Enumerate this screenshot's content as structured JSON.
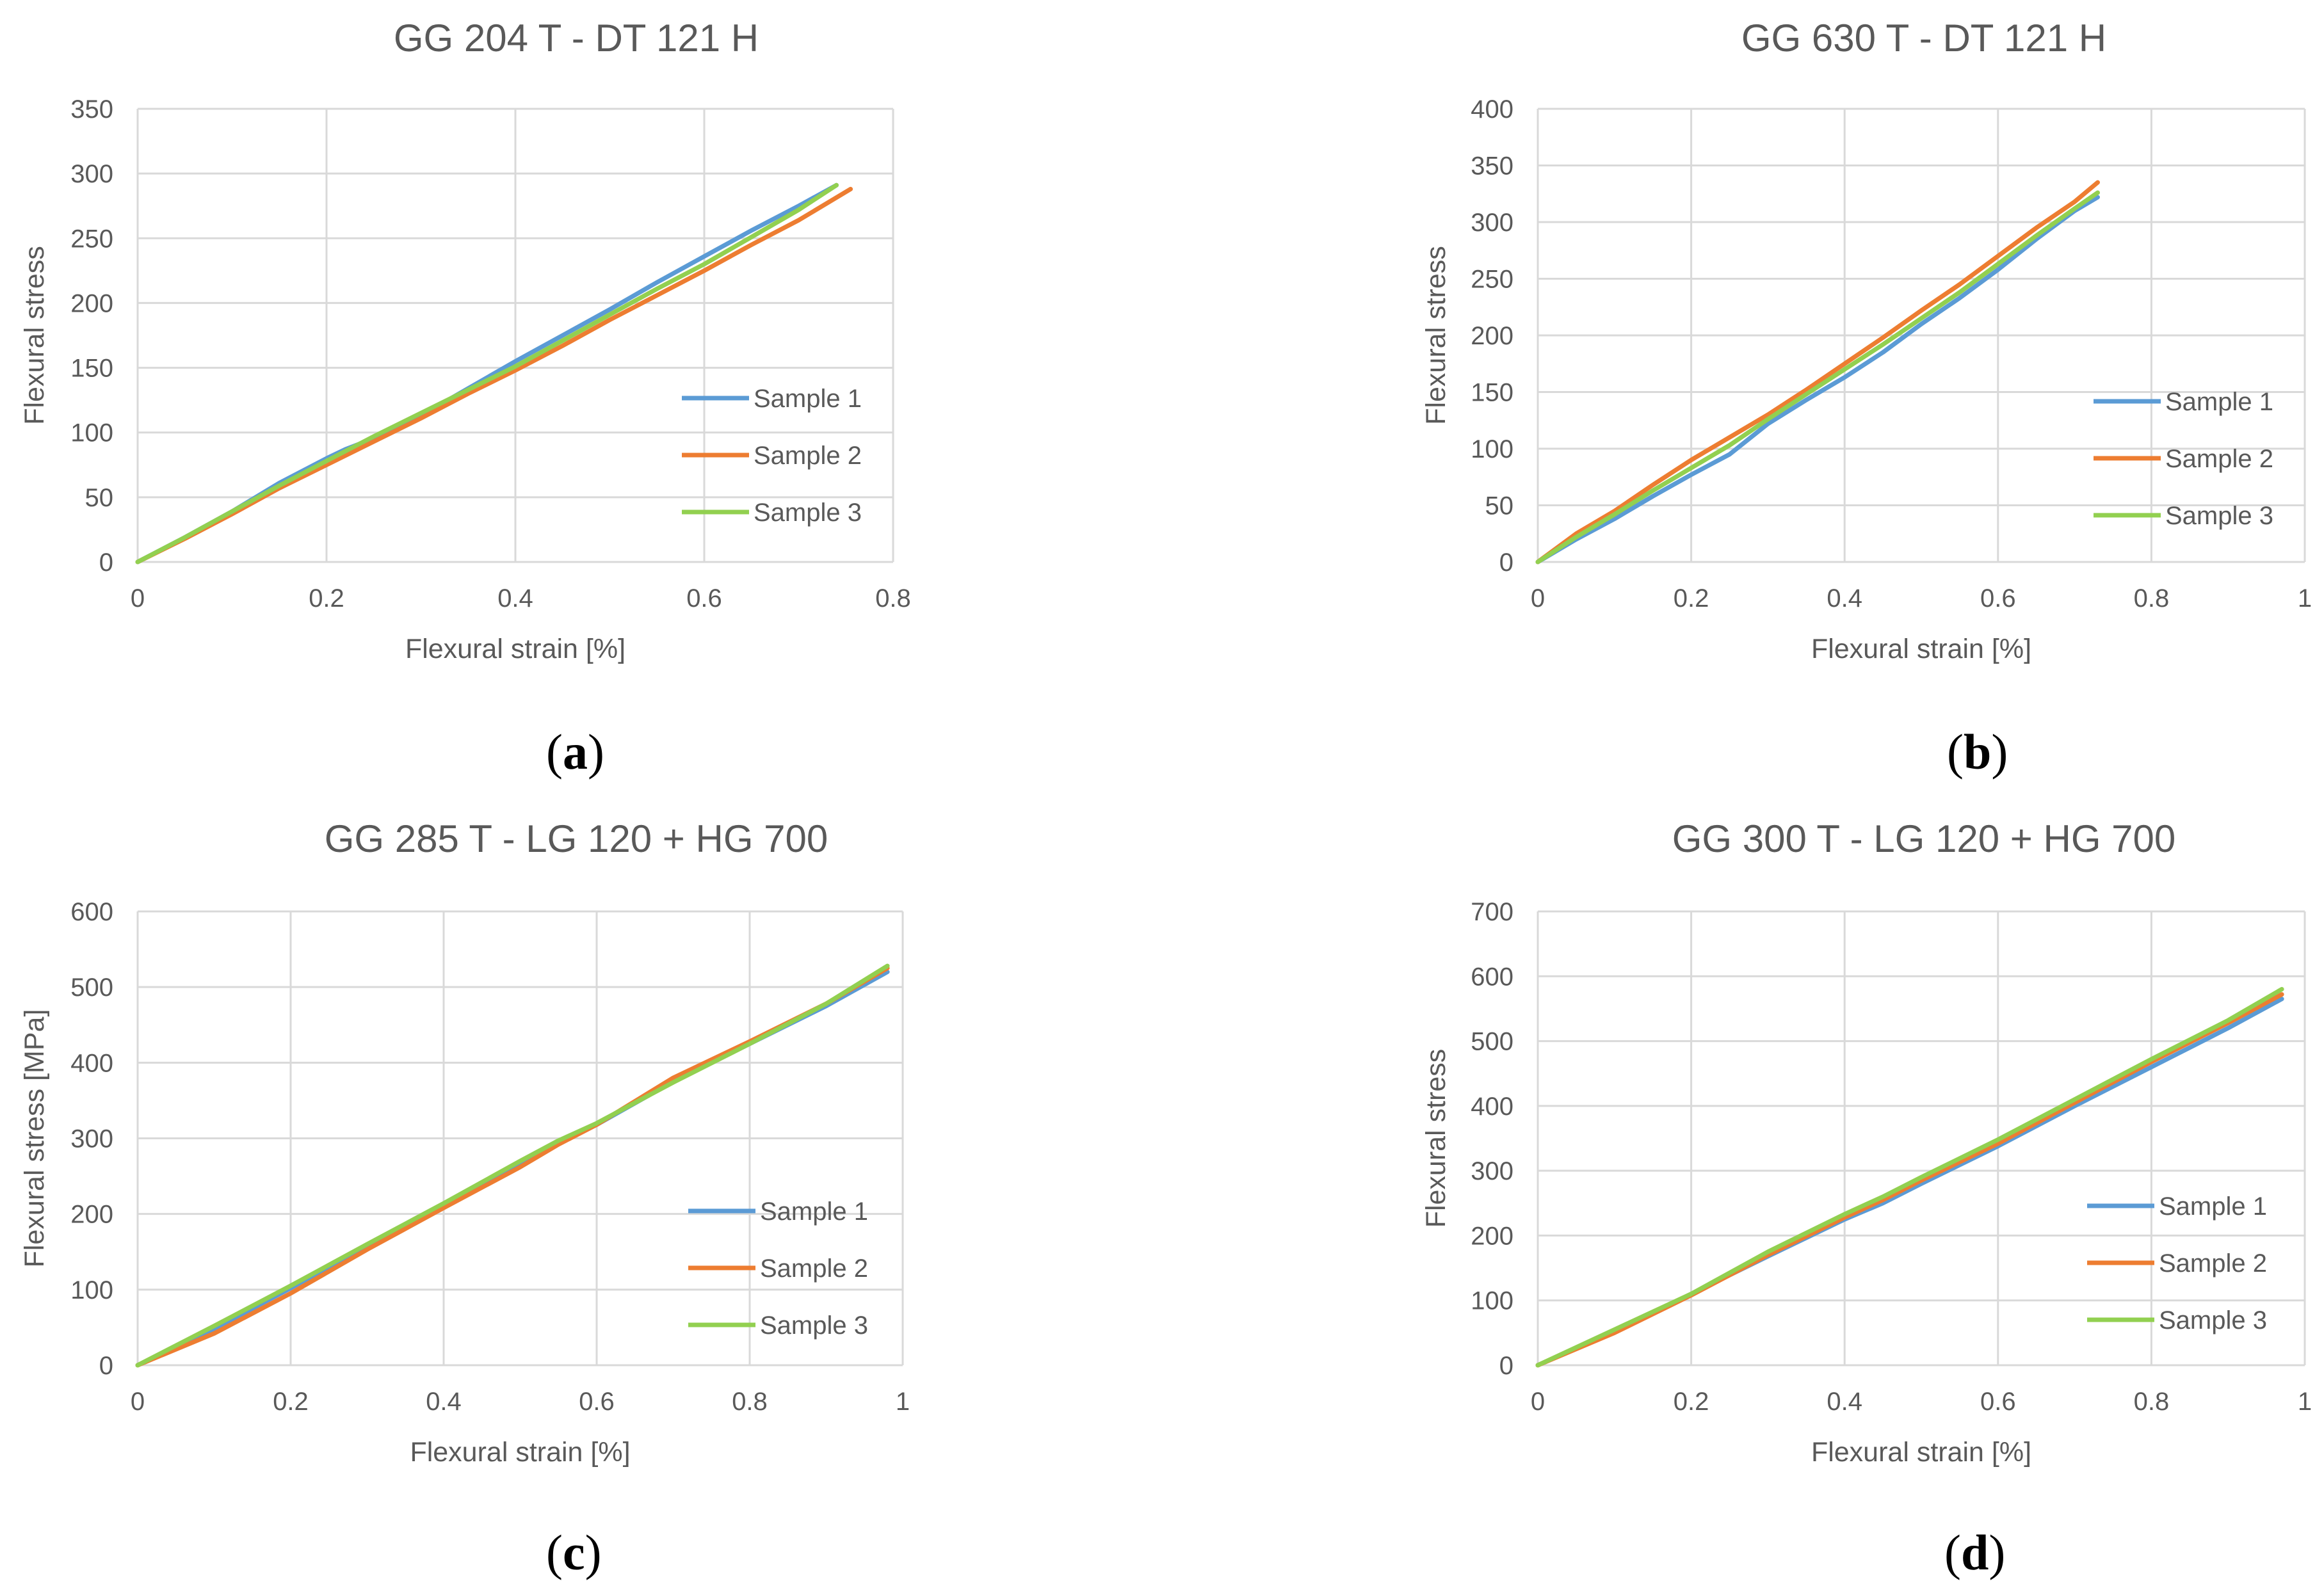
{
  "colors": {
    "sample1": "#5B9BD5",
    "sample2": "#ED7D31",
    "sample3": "#92D050",
    "grid": "#D9D9D9",
    "text": "#595959"
  },
  "chart_data": [
    {
      "type": "line",
      "title": "GG 204 T - DT 121 H",
      "caption": "a",
      "xlabel": "Flexural strain [%]",
      "ylabel": "Flexural stress",
      "xlim": [
        0,
        0.8
      ],
      "ylim": [
        0,
        350
      ],
      "xticks": [
        0,
        0.2,
        0.4,
        0.6,
        0.8
      ],
      "xtick_labels": [
        "0",
        "0.2",
        "0.4",
        "0.6",
        "0.8"
      ],
      "yticks": [
        0,
        50,
        100,
        150,
        200,
        250,
        300,
        350
      ],
      "ytick_labels": [
        "0",
        "50",
        "100",
        "150",
        "200",
        "250",
        "300",
        "350"
      ],
      "legend": "right",
      "series": [
        {
          "name": "Sample 1",
          "x": [
            0,
            0.05,
            0.1,
            0.15,
            0.2,
            0.22,
            0.27,
            0.3,
            0.35,
            0.4,
            0.42,
            0.5,
            0.55,
            0.6,
            0.65,
            0.7,
            0.74
          ],
          "y": [
            0,
            19,
            39,
            61,
            80,
            87,
            101,
            113,
            134,
            155,
            163,
            195,
            216,
            236,
            256,
            275,
            291
          ]
        },
        {
          "name": "Sample 2",
          "x": [
            0,
            0.05,
            0.1,
            0.15,
            0.2,
            0.25,
            0.3,
            0.35,
            0.4,
            0.45,
            0.5,
            0.55,
            0.6,
            0.65,
            0.7,
            0.755
          ],
          "y": [
            0,
            18,
            37,
            57,
            75,
            93,
            111,
            130,
            148,
            167,
            187,
            206,
            225,
            245,
            264,
            288
          ]
        },
        {
          "name": "Sample 3",
          "x": [
            0,
            0.05,
            0.1,
            0.15,
            0.2,
            0.25,
            0.3,
            0.35,
            0.4,
            0.45,
            0.5,
            0.55,
            0.6,
            0.65,
            0.7,
            0.74
          ],
          "y": [
            0,
            19,
            39,
            59,
            78,
            97,
            115,
            133,
            151,
            171,
            191,
            211,
            230,
            251,
            272,
            291
          ]
        }
      ]
    },
    {
      "type": "line",
      "title": "GG 630 T - DT 121 H",
      "caption": "b",
      "xlabel": "Flexural strain [%]",
      "ylabel": "Flexural stress",
      "xlim": [
        0,
        1
      ],
      "ylim": [
        0,
        400
      ],
      "xticks": [
        0,
        0.2,
        0.4,
        0.6,
        0.8,
        1
      ],
      "xtick_labels": [
        "0",
        "0.2",
        "0.4",
        "0.6",
        "0.8",
        "1"
      ],
      "yticks": [
        0,
        50,
        100,
        150,
        200,
        250,
        300,
        350,
        400
      ],
      "ytick_labels": [
        "0",
        "50",
        "100",
        "150",
        "200",
        "250",
        "300",
        "350",
        "400"
      ],
      "legend": "right",
      "series": [
        {
          "name": "Sample 1",
          "x": [
            0,
            0.05,
            0.1,
            0.15,
            0.2,
            0.25,
            0.3,
            0.35,
            0.4,
            0.45,
            0.5,
            0.55,
            0.6,
            0.65,
            0.7,
            0.73
          ],
          "y": [
            0,
            20,
            38,
            58,
            77,
            95,
            122,
            143,
            163,
            185,
            210,
            233,
            258,
            285,
            310,
            322
          ]
        },
        {
          "name": "Sample 2",
          "x": [
            0,
            0.05,
            0.1,
            0.15,
            0.2,
            0.25,
            0.3,
            0.35,
            0.4,
            0.45,
            0.5,
            0.55,
            0.6,
            0.65,
            0.7,
            0.73
          ],
          "y": [
            0,
            25,
            45,
            68,
            90,
            110,
            130,
            152,
            175,
            198,
            222,
            245,
            270,
            295,
            318,
            335
          ]
        },
        {
          "name": "Sample 3",
          "x": [
            0,
            0.05,
            0.1,
            0.15,
            0.2,
            0.25,
            0.3,
            0.35,
            0.4,
            0.45,
            0.5,
            0.55,
            0.6,
            0.65,
            0.7,
            0.73
          ],
          "y": [
            0,
            22,
            42,
            63,
            83,
            103,
            126,
            148,
            170,
            192,
            215,
            238,
            263,
            288,
            312,
            326
          ]
        }
      ]
    },
    {
      "type": "line",
      "title": "GG 285 T - LG 120 + HG 700",
      "caption": "c",
      "xlabel": "Flexural strain [%]",
      "ylabel": "Flexural stress [MPa]",
      "xlim": [
        0,
        1
      ],
      "ylim": [
        0,
        600
      ],
      "xticks": [
        0,
        0.2,
        0.4,
        0.6,
        0.8,
        1
      ],
      "xtick_labels": [
        "0",
        "0.2",
        "0.4",
        "0.6",
        "0.8",
        "1"
      ],
      "yticks": [
        0,
        100,
        200,
        300,
        400,
        500,
        600
      ],
      "ytick_labels": [
        "0",
        "100",
        "200",
        "300",
        "400",
        "500",
        "600"
      ],
      "legend": "right",
      "series": [
        {
          "name": "Sample 1",
          "x": [
            0,
            0.1,
            0.2,
            0.3,
            0.4,
            0.5,
            0.55,
            0.6,
            0.7,
            0.8,
            0.9,
            0.98
          ],
          "y": [
            0,
            48,
            102,
            158,
            212,
            268,
            295,
            318,
            375,
            425,
            475,
            520
          ]
        },
        {
          "name": "Sample 2",
          "x": [
            0,
            0.1,
            0.2,
            0.3,
            0.4,
            0.5,
            0.55,
            0.6,
            0.7,
            0.8,
            0.9,
            0.98
          ],
          "y": [
            0,
            42,
            95,
            153,
            208,
            262,
            292,
            318,
            380,
            428,
            478,
            525
          ]
        },
        {
          "name": "Sample 3",
          "x": [
            0,
            0.1,
            0.2,
            0.3,
            0.4,
            0.5,
            0.55,
            0.6,
            0.7,
            0.8,
            0.9,
            0.98
          ],
          "y": [
            0,
            52,
            105,
            160,
            214,
            270,
            297,
            320,
            374,
            425,
            478,
            528
          ]
        }
      ]
    },
    {
      "type": "line",
      "title": "GG 300 T - LG 120 + HG 700",
      "caption": "d",
      "xlabel": "Flexural strain [%]",
      "ylabel": "Flexural stress",
      "xlim": [
        0,
        1
      ],
      "ylim": [
        0,
        700
      ],
      "xticks": [
        0,
        0.2,
        0.4,
        0.6,
        0.8,
        1
      ],
      "xtick_labels": [
        "0",
        "0.2",
        "0.4",
        "0.6",
        "0.8",
        "1"
      ],
      "yticks": [
        0,
        100,
        200,
        300,
        400,
        500,
        600,
        700
      ],
      "ytick_labels": [
        "0",
        "100",
        "200",
        "300",
        "400",
        "500",
        "600",
        "700"
      ],
      "legend": "right",
      "series": [
        {
          "name": "Sample 1",
          "x": [
            0,
            0.1,
            0.2,
            0.3,
            0.4,
            0.45,
            0.5,
            0.6,
            0.7,
            0.8,
            0.9,
            0.97
          ],
          "y": [
            0,
            52,
            110,
            168,
            225,
            250,
            280,
            338,
            400,
            460,
            520,
            565
          ]
        },
        {
          "name": "Sample 2",
          "x": [
            0,
            0.1,
            0.2,
            0.3,
            0.4,
            0.45,
            0.5,
            0.6,
            0.7,
            0.8,
            0.9,
            0.97
          ],
          "y": [
            0,
            50,
            108,
            170,
            228,
            255,
            285,
            342,
            405,
            468,
            528,
            572
          ]
        },
        {
          "name": "Sample 3",
          "x": [
            0,
            0.1,
            0.2,
            0.3,
            0.4,
            0.45,
            0.5,
            0.6,
            0.7,
            0.8,
            0.9,
            0.97
          ],
          "y": [
            0,
            55,
            110,
            175,
            233,
            260,
            290,
            348,
            410,
            472,
            532,
            580
          ]
        }
      ]
    }
  ]
}
